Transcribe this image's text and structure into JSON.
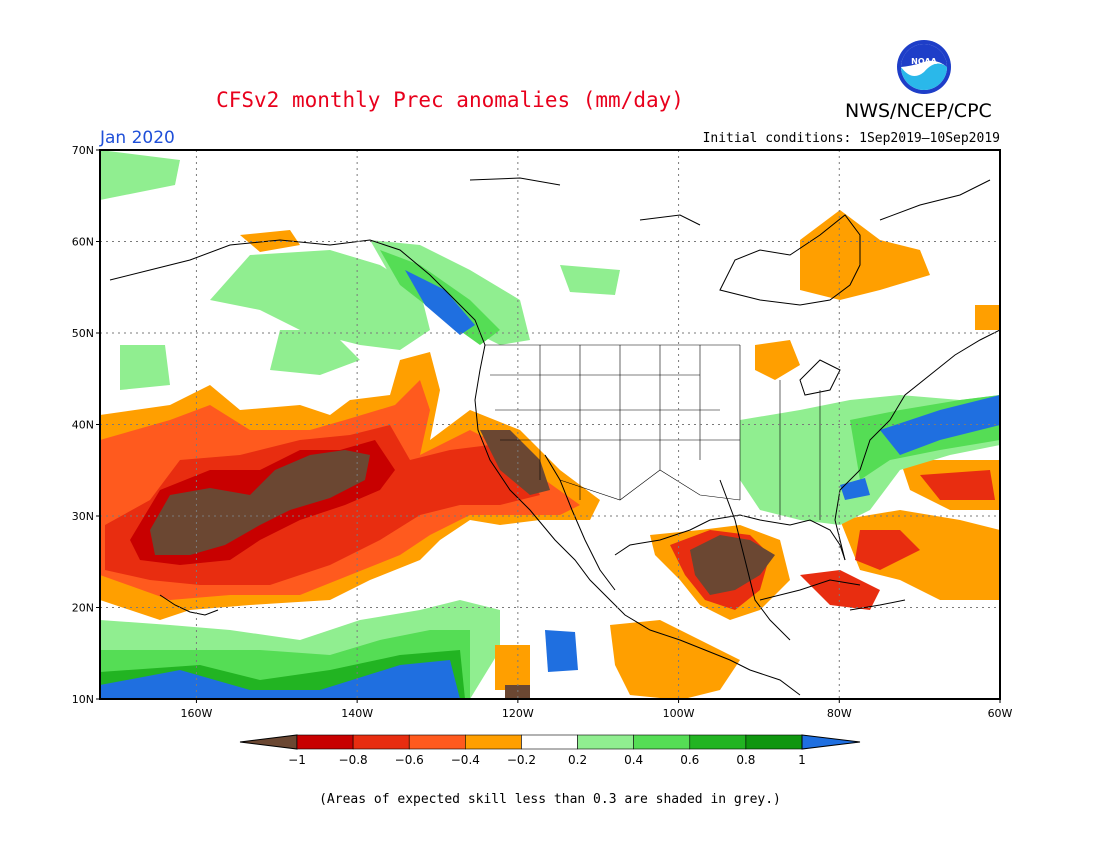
{
  "header": {
    "title": "CFSv2 monthly Prec anomalies (mm/day)",
    "agency": "NWS/NCEP/CPC",
    "logo_text": "NOAA",
    "month": "Jan 2020",
    "initial_conditions": "Initial conditions: 1Sep2019—10Sep2019"
  },
  "axes": {
    "lat_labels": [
      "70N",
      "60N",
      "50N",
      "40N",
      "30N",
      "20N",
      "10N"
    ],
    "lat_values": [
      70,
      60,
      50,
      40,
      30,
      20,
      10
    ],
    "lon_labels": [
      "160W",
      "140W",
      "120W",
      "100W",
      "80W",
      "60W"
    ],
    "lon_values": [
      -160,
      -140,
      -120,
      -100,
      -80,
      -60
    ],
    "lon_range": [
      -172,
      -60
    ],
    "lat_range": [
      10,
      70
    ]
  },
  "colorbar": {
    "labels": [
      "−1",
      "−0.8",
      "−0.6",
      "−0.4",
      "−0.2",
      "0.2",
      "0.4",
      "0.6",
      "0.8",
      "1"
    ],
    "colors": [
      "#6b4732",
      "#c80000",
      "#e82d10",
      "#ff5a1e",
      "#ff9f00",
      "#ffffff",
      "#90ee90",
      "#55dd55",
      "#22b422",
      "#0f960f",
      "#1f6fe0"
    ]
  },
  "footnote": "(Areas of expected skill less than 0.3 are shaded in grey.)"
}
